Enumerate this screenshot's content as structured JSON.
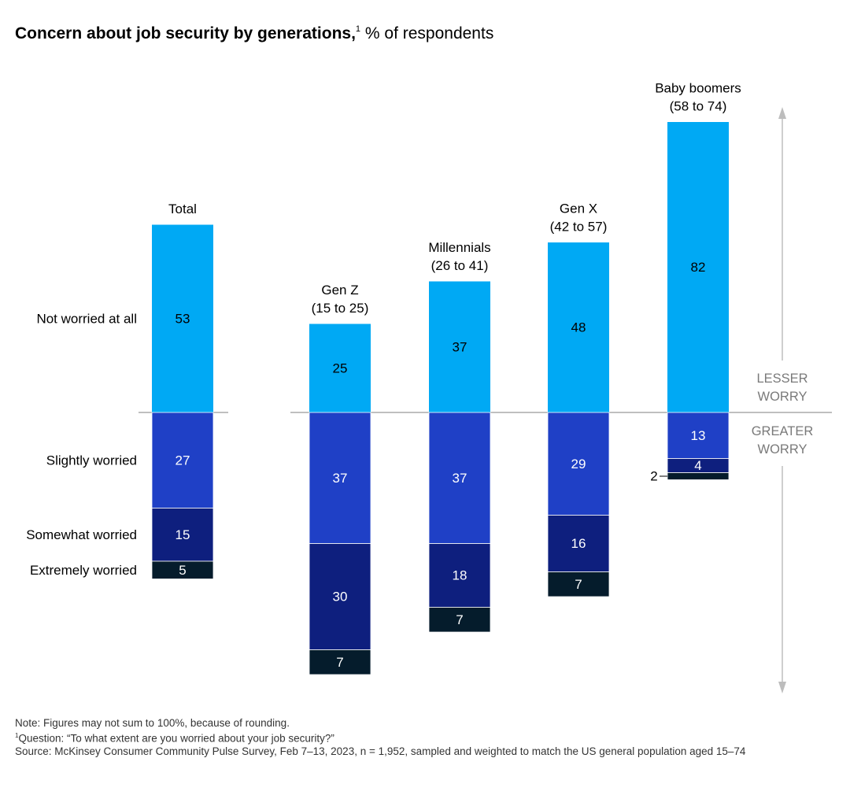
{
  "title": {
    "bold": "Concern about job security by generations,",
    "sup": "1",
    "rest": " % of respondents"
  },
  "chart_data": {
    "type": "bar",
    "stacked": true,
    "diverging": true,
    "title": "Concern about job security by generations, % of respondents",
    "categories": [
      "Total",
      "Gen Z (15 to 25)",
      "Millennials (26 to 41)",
      "Gen X (42 to 57)",
      "Baby boomers (58 to 74)"
    ],
    "category_lines": [
      [
        "Total"
      ],
      [
        "Gen Z",
        "(15 to 25)"
      ],
      [
        "Millennials",
        "(26 to 41)"
      ],
      [
        "Gen X",
        "(42 to 57)"
      ],
      [
        "Baby boomers",
        "(58 to 74)"
      ]
    ],
    "series": [
      {
        "name": "Not worried at all",
        "direction": "up",
        "color": "#00a9f4",
        "values": [
          53,
          25,
          37,
          48,
          82
        ]
      },
      {
        "name": "Slightly worried",
        "direction": "down",
        "color": "#1f40c6",
        "values": [
          27,
          37,
          37,
          29,
          13
        ]
      },
      {
        "name": "Somewhat worried",
        "direction": "down",
        "color": "#0e1f7e",
        "values": [
          15,
          30,
          18,
          16,
          4
        ]
      },
      {
        "name": "Extremely worried",
        "direction": "down",
        "color": "#051c2c",
        "values": [
          5,
          7,
          7,
          7,
          2
        ]
      }
    ],
    "axis_labels": {
      "up": [
        "LESSER",
        "WORRY"
      ],
      "down": [
        "GREATER",
        "WORRY"
      ]
    }
  },
  "notes": {
    "note": "Note: Figures may not sum to 100%, because of rounding.",
    "question_sup": "1",
    "question": "Question: “To what extent are you worried about your job security?”",
    "source": "Source: McKinsey Consumer Community Pulse Survey, Feb 7–13, 2023, n = 1,952, sampled and weighted to match the US general population aged 15–74"
  }
}
